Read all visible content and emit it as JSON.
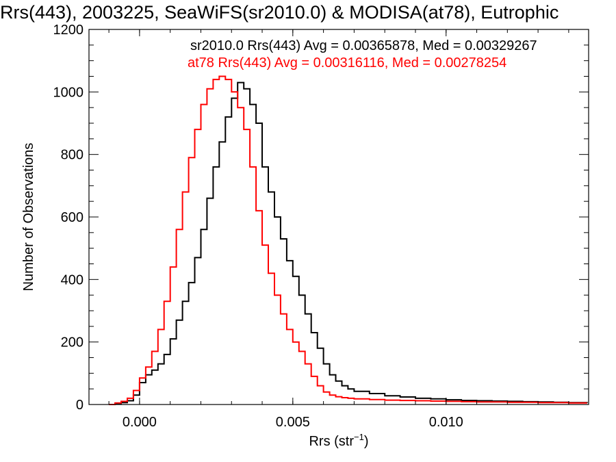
{
  "chart_data": {
    "type": "line",
    "title": "Rrs(443), 2003225, SeaWiFS(sr2010.0) & MODISA(at78), Eutrophic",
    "xlabel": "Rrs (str",
    "xlabel_sup": "−1",
    "xlabel_close": ")",
    "ylabel": "Number of Observations",
    "xlim": [
      -0.00165,
      0.01465
    ],
    "ylim": [
      0,
      1200
    ],
    "x_ticks": [
      {
        "value": 0.0,
        "label": "0.000"
      },
      {
        "value": 0.005,
        "label": "0.005"
      },
      {
        "value": 0.01,
        "label": "0.010"
      }
    ],
    "y_ticks": [
      {
        "value": 0,
        "label": "0"
      },
      {
        "value": 200,
        "label": "200"
      },
      {
        "value": 400,
        "label": "400"
      },
      {
        "value": 600,
        "label": "600"
      },
      {
        "value": 800,
        "label": "800"
      },
      {
        "value": 1000,
        "label": "1000"
      },
      {
        "value": 1200,
        "label": "1200"
      }
    ],
    "grid": false,
    "legend_position": "top-right",
    "series": [
      {
        "name": "sr2010.0",
        "color": "#000000",
        "legend_text": "sr2010.0 Rrs(443) Avg = 0.00365878, Med = 0.00329267",
        "x": [
          -0.001,
          -0.0008,
          -0.0006,
          -0.0004,
          -0.0002,
          0.0,
          0.0002,
          0.0004,
          0.0006,
          0.0008,
          0.001,
          0.0012,
          0.0014,
          0.0016,
          0.0018,
          0.002,
          0.0022,
          0.0024,
          0.0026,
          0.0028,
          0.003,
          0.0032,
          0.0034,
          0.0036,
          0.0038,
          0.004,
          0.0042,
          0.0044,
          0.0046,
          0.0048,
          0.005,
          0.0052,
          0.0054,
          0.0056,
          0.0058,
          0.006,
          0.0062,
          0.0064,
          0.0066,
          0.0068,
          0.007,
          0.0075,
          0.008,
          0.0085,
          0.009,
          0.0095,
          0.01,
          0.0105,
          0.011,
          0.0115,
          0.012,
          0.0125,
          0.013,
          0.0135,
          0.014,
          0.0146
        ],
        "y": [
          0,
          3,
          6,
          12,
          30,
          70,
          95,
          110,
          130,
          160,
          210,
          270,
          330,
          390,
          470,
          560,
          660,
          760,
          840,
          920,
          980,
          1030,
          1010,
          960,
          900,
          760,
          680,
          600,
          530,
          460,
          410,
          350,
          290,
          230,
          180,
          130,
          95,
          75,
          60,
          50,
          42,
          35,
          28,
          24,
          20,
          18,
          15,
          13,
          12,
          11,
          10,
          9,
          8,
          7,
          6,
          5
        ]
      },
      {
        "name": "at78",
        "color": "#ff0000",
        "legend_text": "at78 Rrs(443) Avg = 0.00316116, Med = 0.00278254",
        "x": [
          -0.001,
          -0.0008,
          -0.0006,
          -0.0004,
          -0.0002,
          0.0,
          0.0002,
          0.0004,
          0.0006,
          0.0008,
          0.001,
          0.0012,
          0.0014,
          0.0016,
          0.0018,
          0.002,
          0.0022,
          0.0024,
          0.0026,
          0.0028,
          0.003,
          0.0032,
          0.0034,
          0.0036,
          0.0038,
          0.004,
          0.0042,
          0.0044,
          0.0046,
          0.0048,
          0.005,
          0.0052,
          0.0054,
          0.0056,
          0.0058,
          0.006,
          0.0062,
          0.0064,
          0.0066,
          0.0068,
          0.007,
          0.0075,
          0.008,
          0.0085,
          0.009,
          0.0095,
          0.01,
          0.0105,
          0.011,
          0.0115,
          0.012,
          0.0125,
          0.013,
          0.0135,
          0.014,
          0.0146
        ],
        "y": [
          0,
          5,
          10,
          20,
          45,
          85,
          120,
          170,
          240,
          330,
          440,
          560,
          680,
          790,
          880,
          960,
          1010,
          1040,
          1050,
          1040,
          1000,
          950,
          880,
          760,
          620,
          510,
          420,
          350,
          290,
          240,
          200,
          170,
          130,
          90,
          60,
          40,
          30,
          25,
          22,
          20,
          18,
          16,
          14,
          13,
          12,
          11,
          10,
          9,
          8,
          8,
          7,
          7,
          6,
          6,
          5,
          5
        ]
      }
    ]
  }
}
